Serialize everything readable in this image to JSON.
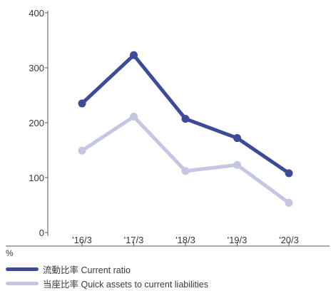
{
  "chart_data": {
    "type": "line",
    "categories": [
      "'16/3",
      "'17/3",
      "'18/3",
      "'19/3",
      "'20/3"
    ],
    "series": [
      {
        "name": "流動比率 Current ratio",
        "color": "#3d4a9a",
        "values": [
          235,
          323,
          207,
          172,
          108
        ]
      },
      {
        "name": "当座比率 Quick assets to current liabilities",
        "color": "#c4c6e2",
        "values": [
          149,
          211,
          112,
          123,
          54
        ]
      }
    ],
    "yticks": [
      0,
      100,
      200,
      300,
      400
    ],
    "ylim": [
      0,
      400
    ],
    "ylabel": "%",
    "grid": false,
    "legend_position": "bottom-left"
  }
}
